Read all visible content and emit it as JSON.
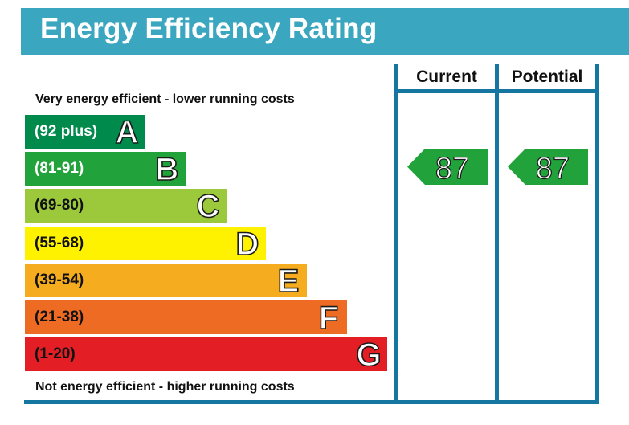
{
  "title": "Energy Efficiency Rating",
  "top_note": "Very energy efficient - lower running costs",
  "bottom_note": "Not energy efficient - higher running costs",
  "columns": {
    "current": "Current",
    "potential": "Potential"
  },
  "bands": [
    {
      "range": "(92 plus)",
      "letter": "A",
      "color": "#008a4b",
      "text_color": "#ffffff"
    },
    {
      "range": "(81-91)",
      "letter": "B",
      "color": "#22a23a",
      "text_color": "#ffffff"
    },
    {
      "range": "(69-80)",
      "letter": "C",
      "color": "#9bc93b",
      "text_color": "#111111"
    },
    {
      "range": "(55-68)",
      "letter": "D",
      "color": "#fff200",
      "text_color": "#111111"
    },
    {
      "range": "(39-54)",
      "letter": "E",
      "color": "#f5ac1f",
      "text_color": "#111111"
    },
    {
      "range": "(21-38)",
      "letter": "F",
      "color": "#ee6b24",
      "text_color": "#111111"
    },
    {
      "range": "(1-20)",
      "letter": "G",
      "color": "#e31e24",
      "text_color": "#111111"
    }
  ],
  "ratings": {
    "current": {
      "value": "87",
      "band": "B",
      "color": "#22a23a"
    },
    "potential": {
      "value": "87",
      "band": "B",
      "color": "#22a23a"
    }
  },
  "colors": {
    "header": "#3ba6bf",
    "frame": "#1576a2"
  }
}
